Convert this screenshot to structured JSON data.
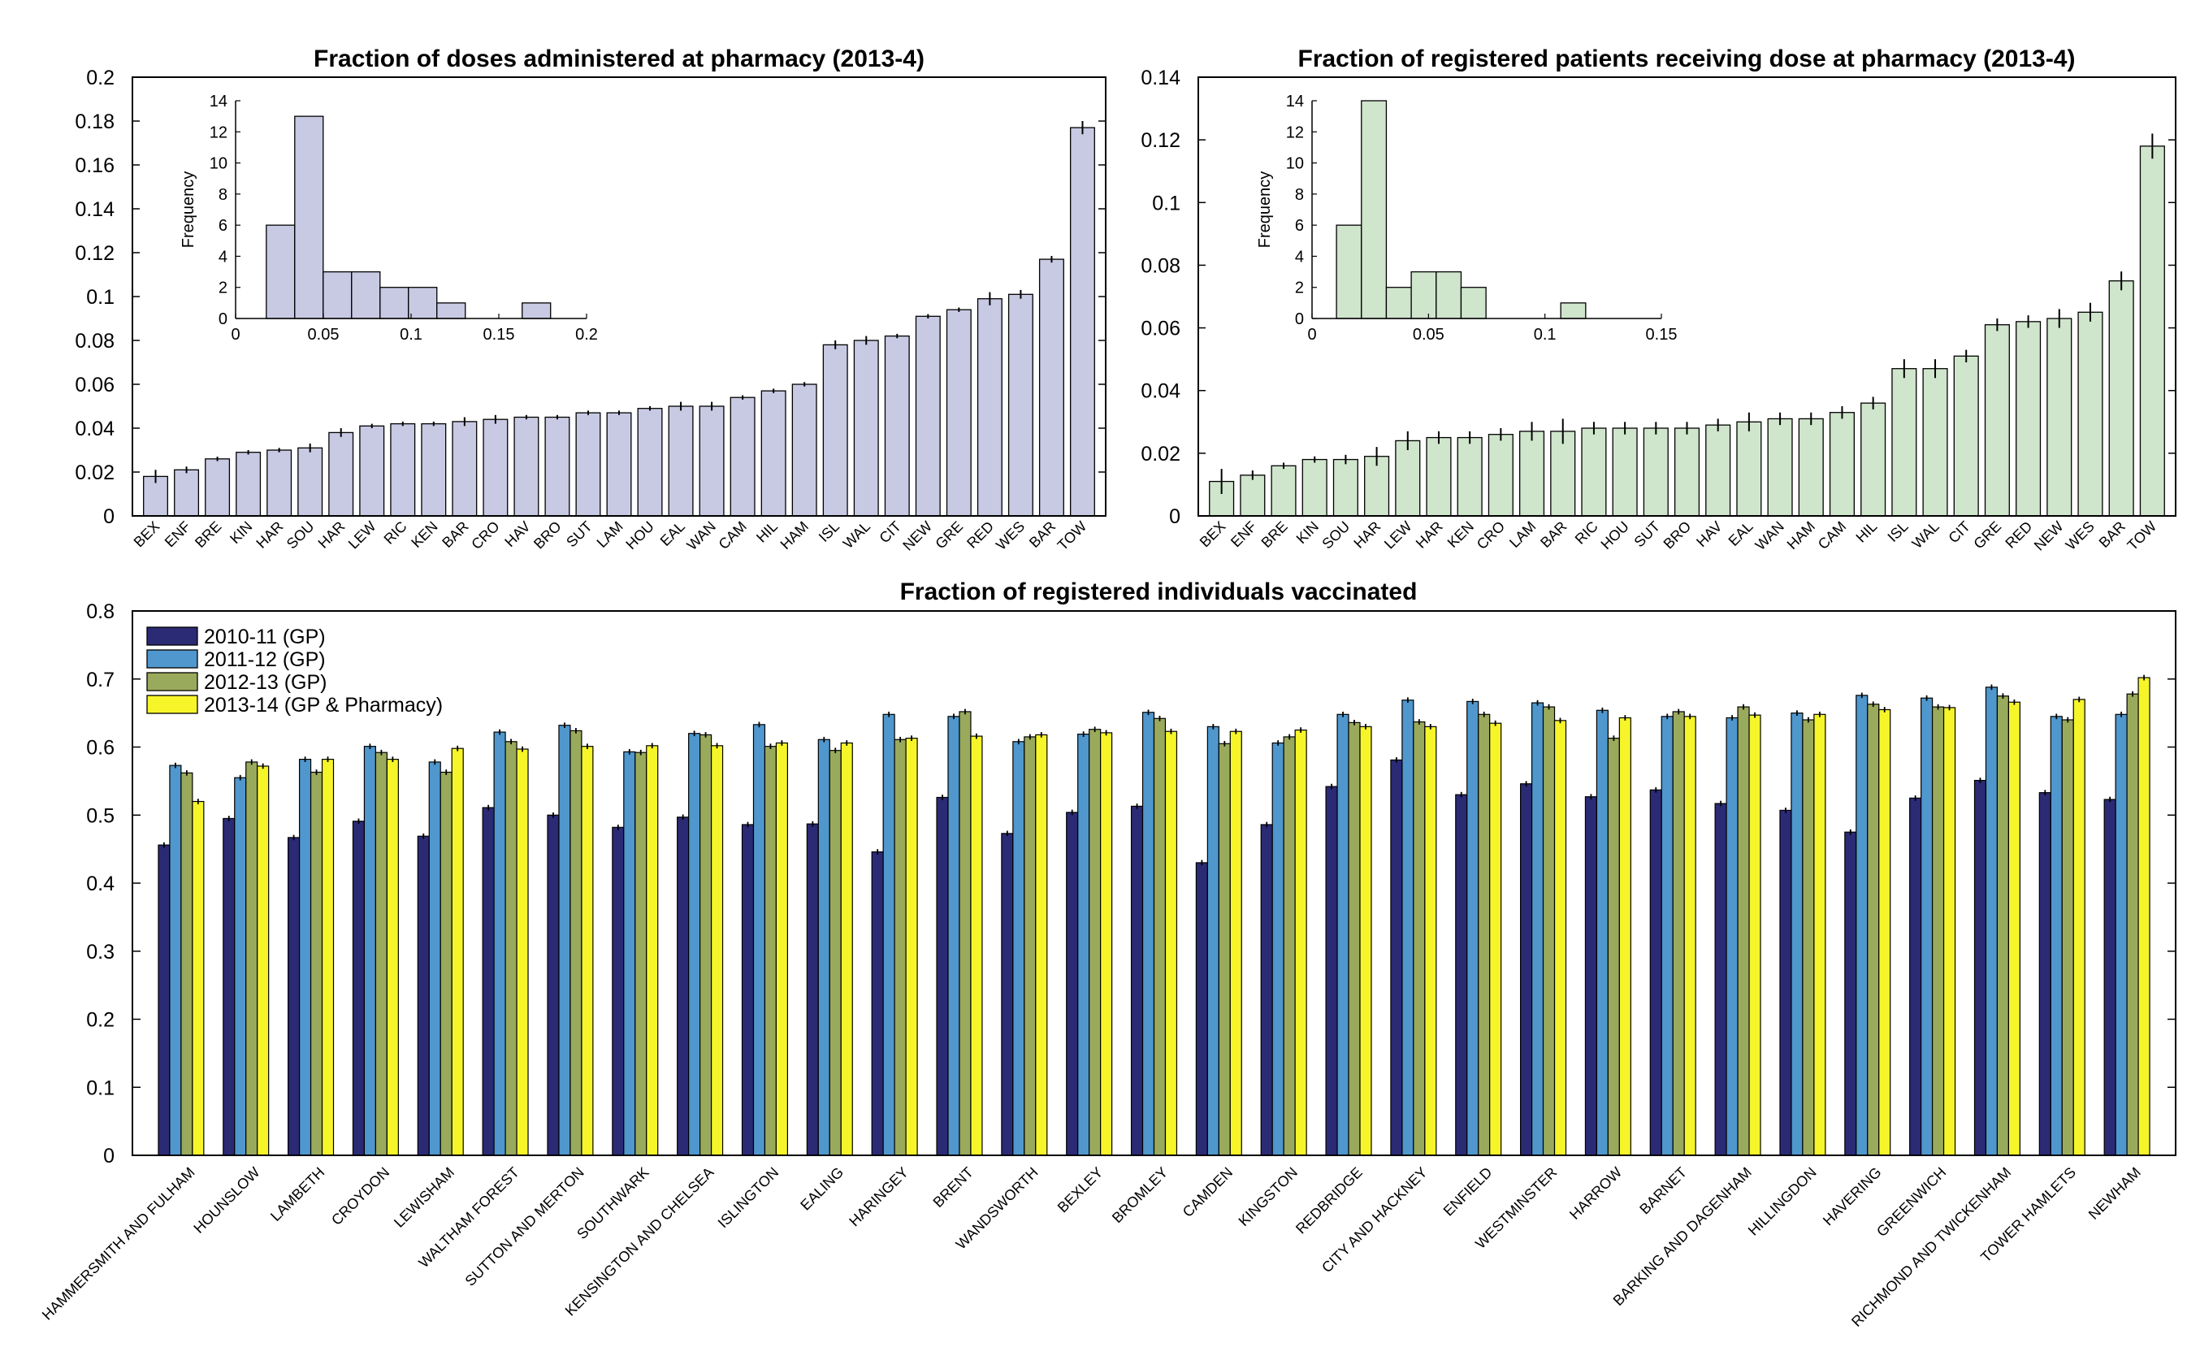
{
  "colors": {
    "pharmacy_doses": "#c8c9e3",
    "pharmacy_patients": "#cfe5cc",
    "y2010": "#2b2a74",
    "y2011": "#4f97cd",
    "y2012": "#9aaa5c",
    "y2013": "#f6f52a"
  },
  "chart_data": [
    {
      "id": "doses",
      "type": "bar",
      "title": "Fraction of doses administered at pharmacy (2013-4)",
      "ylim": [
        0,
        0.2
      ],
      "yticks": [
        "0",
        "0.02",
        "0.04",
        "0.06",
        "0.08",
        "0.1",
        "0.12",
        "0.14",
        "0.16",
        "0.18",
        "0.2"
      ],
      "categories": [
        "BEX",
        "ENF",
        "BRE",
        "KIN",
        "HAR",
        "SOU",
        "HAR",
        "LEW",
        "RIC",
        "KEN",
        "BAR",
        "CRO",
        "HAV",
        "BRO",
        "SUT",
        "LAM",
        "HOU",
        "EAL",
        "WAN",
        "CAM",
        "HIL",
        "HAM",
        "ISL",
        "WAL",
        "CIT",
        "NEW",
        "GRE",
        "RED",
        "WES",
        "BAR",
        "TOW"
      ],
      "values": [
        0.018,
        0.021,
        0.026,
        0.029,
        0.03,
        0.031,
        0.038,
        0.041,
        0.042,
        0.042,
        0.043,
        0.044,
        0.045,
        0.045,
        0.047,
        0.047,
        0.049,
        0.05,
        0.05,
        0.054,
        0.057,
        0.06,
        0.078,
        0.08,
        0.082,
        0.091,
        0.094,
        0.099,
        0.101,
        0.117,
        0.177
      ],
      "errors": [
        0.003,
        0.0015,
        0.001,
        0.001,
        0.001,
        0.002,
        0.002,
        0.001,
        0.001,
        0.001,
        0.002,
        0.002,
        0.001,
        0.001,
        0.001,
        0.001,
        0.001,
        0.002,
        0.002,
        0.001,
        0.001,
        0.001,
        0.002,
        0.002,
        0.001,
        0.001,
        0.001,
        0.003,
        0.002,
        0.0015,
        0.003
      ],
      "inset": {
        "type": "histogram",
        "ylabel": "Frequency",
        "xlim": [
          0,
          0.2
        ],
        "ylim": [
          0,
          14
        ],
        "xticks": [
          "0",
          "0.05",
          "0.1",
          "0.15",
          "0.2"
        ],
        "yticks": [
          "0",
          "2",
          "4",
          "6",
          "8",
          "10",
          "12",
          "14"
        ],
        "bin_edges": [
          0.0175,
          0.0337,
          0.0499,
          0.0661,
          0.0823,
          0.0985,
          0.1147,
          0.1309,
          0.1471,
          0.1633,
          0.1795
        ],
        "counts": [
          6,
          13,
          3,
          3,
          2,
          2,
          1,
          0,
          0,
          1
        ]
      }
    },
    {
      "id": "patients",
      "type": "bar",
      "title": "Fraction of registered patients receiving dose at pharmacy (2013-4)",
      "ylim": [
        0,
        0.14
      ],
      "yticks": [
        "0",
        "0.02",
        "0.04",
        "0.06",
        "0.08",
        "0.1",
        "0.12",
        "0.14"
      ],
      "categories": [
        "BEX",
        "ENF",
        "BRE",
        "KIN",
        "SOU",
        "HAR",
        "LEW",
        "HAR",
        "KEN",
        "CRO",
        "LAM",
        "BAR",
        "RIC",
        "HOU",
        "SUT",
        "BRO",
        "HAV",
        "EAL",
        "WAN",
        "HAM",
        "CAM",
        "HIL",
        "ISL",
        "WAL",
        "CIT",
        "GRE",
        "RED",
        "NEW",
        "WES",
        "BAR",
        "TOW"
      ],
      "values": [
        0.011,
        0.013,
        0.016,
        0.018,
        0.018,
        0.019,
        0.024,
        0.025,
        0.025,
        0.026,
        0.027,
        0.027,
        0.028,
        0.028,
        0.028,
        0.028,
        0.029,
        0.03,
        0.031,
        0.031,
        0.033,
        0.036,
        0.047,
        0.047,
        0.051,
        0.061,
        0.062,
        0.063,
        0.065,
        0.075,
        0.118
      ],
      "errors": [
        0.004,
        0.0015,
        0.001,
        0.001,
        0.0015,
        0.003,
        0.003,
        0.002,
        0.002,
        0.002,
        0.003,
        0.004,
        0.002,
        0.002,
        0.002,
        0.002,
        0.002,
        0.003,
        0.002,
        0.002,
        0.002,
        0.002,
        0.003,
        0.003,
        0.002,
        0.002,
        0.002,
        0.003,
        0.003,
        0.003,
        0.004
      ],
      "inset": {
        "type": "histogram",
        "ylabel": "Frequency",
        "xlim": [
          0,
          0.15
        ],
        "ylim": [
          0,
          14
        ],
        "xticks": [
          "0",
          "0.05",
          "0.1",
          "0.15"
        ],
        "yticks": [
          "0",
          "2",
          "4",
          "6",
          "8",
          "10",
          "12",
          "14"
        ],
        "bin_edges": [
          0.0105,
          0.0212,
          0.0319,
          0.0426,
          0.0533,
          0.064,
          0.0747,
          0.0854,
          0.0961,
          0.1068,
          0.1175
        ],
        "counts": [
          6,
          14,
          2,
          3,
          3,
          2,
          0,
          0,
          0,
          1
        ]
      }
    },
    {
      "id": "vaccinated",
      "type": "bar",
      "title": "Fraction of registered individuals vaccinated",
      "ylim": [
        0,
        0.8
      ],
      "yticks": [
        "0",
        "0.1",
        "0.2",
        "0.3",
        "0.4",
        "0.5",
        "0.6",
        "0.7",
        "0.8"
      ],
      "legend_position": "top-left",
      "categories": [
        "HAMMERSMITH AND FULHAM",
        "HOUNSLOW",
        "LAMBETH",
        "CROYDON",
        "LEWISHAM",
        "WALTHAM FOREST",
        "SUTTON AND MERTON",
        "SOUTHWARK",
        "KENSINGTON AND CHELSEA",
        "ISLINGTON",
        "EALING",
        "HARINGEY",
        "BRENT",
        "WANDSWORTH",
        "BEXLEY",
        "BROMLEY",
        "CAMDEN",
        "KINGSTON",
        "REDBRIDGE",
        "CITY AND HACKNEY",
        "ENFIELD",
        "WESTMINSTER",
        "HARROW",
        "BARNET",
        "BARKING AND DAGENHAM",
        "HILLINGDON",
        "HAVERING",
        "GREENWICH",
        "RICHMOND AND TWICKENHAM",
        "TOWER HAMLETS",
        "NEWHAM"
      ],
      "series": [
        {
          "name": "2010-11 (GP)",
          "color_key": "y2010",
          "values": [
            0.456,
            0.495,
            0.467,
            0.491,
            0.469,
            0.511,
            0.5,
            0.482,
            0.497,
            0.486,
            0.487,
            0.446,
            0.526,
            0.473,
            0.504,
            0.513,
            0.43,
            0.486,
            0.542,
            0.581,
            0.53,
            0.546,
            0.527,
            0.537,
            0.517,
            0.507,
            0.475,
            0.525,
            0.551,
            0.533,
            0.523
          ]
        },
        {
          "name": "2011-12 (GP)",
          "color_key": "y2011",
          "values": [
            0.573,
            0.555,
            0.582,
            0.601,
            0.578,
            0.622,
            0.632,
            0.593,
            0.62,
            0.633,
            0.611,
            0.648,
            0.645,
            0.608,
            0.619,
            0.651,
            0.63,
            0.606,
            0.648,
            0.669,
            0.667,
            0.665,
            0.654,
            0.645,
            0.643,
            0.65,
            0.676,
            0.672,
            0.688,
            0.645,
            0.648
          ]
        },
        {
          "name": "2012-13 (GP)",
          "color_key": "y2012",
          "values": [
            0.562,
            0.578,
            0.563,
            0.592,
            0.563,
            0.608,
            0.624,
            0.592,
            0.618,
            0.601,
            0.595,
            0.611,
            0.652,
            0.615,
            0.626,
            0.642,
            0.605,
            0.615,
            0.636,
            0.637,
            0.648,
            0.659,
            0.613,
            0.652,
            0.659,
            0.64,
            0.663,
            0.659,
            0.675,
            0.64,
            0.678
          ]
        },
        {
          "name": "2013-14 (GP & Pharmacy)",
          "color_key": "y2013",
          "values": [
            0.52,
            0.572,
            0.582,
            0.582,
            0.598,
            0.597,
            0.601,
            0.602,
            0.602,
            0.606,
            0.606,
            0.613,
            0.616,
            0.618,
            0.621,
            0.623,
            0.623,
            0.625,
            0.63,
            0.63,
            0.635,
            0.639,
            0.643,
            0.645,
            0.647,
            0.648,
            0.655,
            0.658,
            0.666,
            0.67,
            0.702
          ]
        }
      ]
    }
  ]
}
